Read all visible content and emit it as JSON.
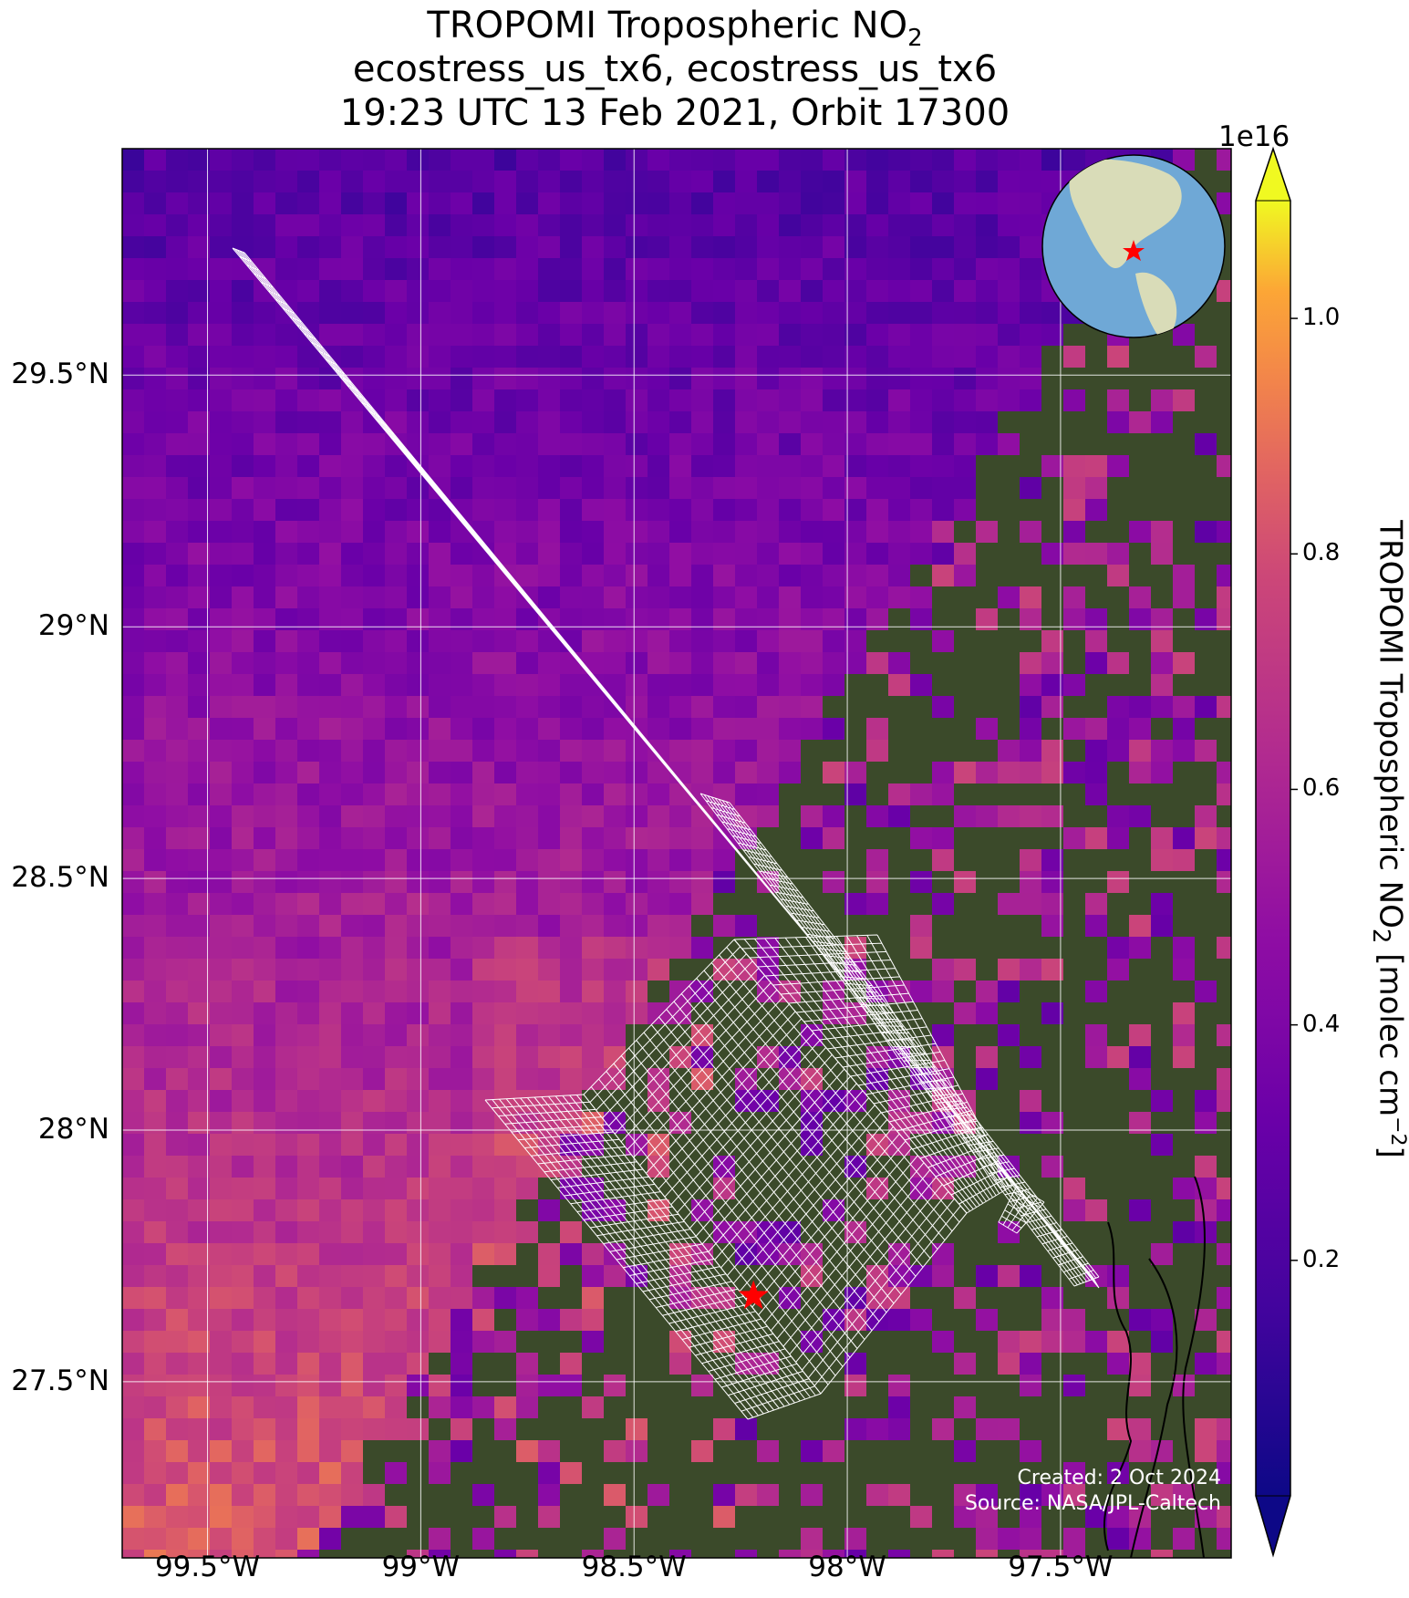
{
  "title": {
    "line1_main": "TROPOMI Tropospheric NO",
    "line1_sub": "2",
    "line2": "ecostress_us_tx6, ecostress_us_tx6",
    "line3": "19:23 UTC 13 Feb 2021, Orbit 17300"
  },
  "map": {
    "extent_lon": [
      -99.7,
      -97.1
    ],
    "extent_lat": [
      27.15,
      29.95
    ],
    "lat_ticks": [
      {
        "value": 29.5,
        "label": "29.5°N"
      },
      {
        "value": 29.0,
        "label": "29°N"
      },
      {
        "value": 28.5,
        "label": "28.5°N"
      },
      {
        "value": 28.0,
        "label": "28°N"
      },
      {
        "value": 27.5,
        "label": "27.5°N"
      }
    ],
    "lon_ticks": [
      {
        "value": -99.5,
        "label": "99.5°W"
      },
      {
        "value": -99.0,
        "label": "99°W"
      },
      {
        "value": -98.5,
        "label": "98.5°W"
      },
      {
        "value": -98.0,
        "label": "98°W"
      },
      {
        "value": -97.5,
        "label": "97.5°W"
      }
    ],
    "site_marker": {
      "lon": -98.22,
      "lat": 27.67,
      "color": "#ff0000"
    },
    "grid_color": "#ffffff"
  },
  "colorbar": {
    "exponent_label": "1e16",
    "colormap": "plasma",
    "range": [
      0.0,
      1.1
    ],
    "ticks": [
      "0.2",
      "0.4",
      "0.6",
      "0.8",
      "1.0"
    ],
    "tick_values": [
      0.2,
      0.4,
      0.6,
      0.8,
      1.0
    ],
    "label_main": "TROPOMI Tropospheric NO",
    "label_sub": "2",
    "label_units": " [molec cm",
    "label_sup": "−2",
    "label_end": "]",
    "extend": "both"
  },
  "inset_globe": {
    "marker": "red-star",
    "ocean_color": "#6fa8d6",
    "land_color": "#d9dcb8"
  },
  "credits": {
    "created": "Created: 2 Oct 2024",
    "source": "Source: NASA/JPL-Caltech"
  }
}
